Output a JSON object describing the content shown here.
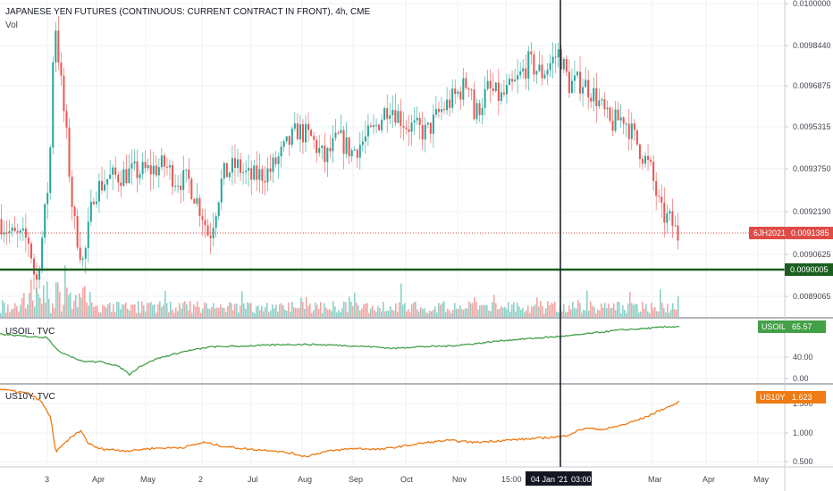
{
  "colors": {
    "candle_up": "#26a69a",
    "candle_down": "#ef5350",
    "vol_up": "#8fd0c8",
    "vol_down": "#f2a7a5",
    "usoil": "#43a047",
    "us10y": "#ef7b14",
    "current_tag": "#e04b46",
    "support_line": "#1b5e20",
    "crosshair": "#131722",
    "grid": "#eef0f4",
    "pane_sep": "#6b6f7a"
  },
  "main_pane": {
    "title": "JAPANESE YEN FUTURES (CONTINUOUS: CURRENT CONTRACT IN FRONT), 4h, CME",
    "volume_label": "Vol",
    "y_ticks": [
      "0.0100000",
      "0.0098440",
      "0.0096875",
      "0.0095315",
      "0.0093750",
      "0.0092190",
      "0.0090625",
      "0.0089065"
    ],
    "current_symbol": "6JH2021",
    "current_price": "0.0091385",
    "support_price": "0.0090005"
  },
  "usoil_pane": {
    "title": "USOIL, TVC",
    "symbol": "USOIL",
    "value": "65.57",
    "y_ticks": [
      "40.00",
      "0.00"
    ]
  },
  "us10y_pane": {
    "title": "US10Y, TVC",
    "symbol": "US10Y",
    "value": "1.623",
    "y_ticks": [
      "1.500",
      "1.000",
      "0.500"
    ]
  },
  "x_axis": {
    "labels": [
      "3",
      "Apr",
      "May",
      "2",
      "Jul",
      "Aug",
      "Sep",
      "Oct",
      "Nov",
      "15:00",
      "Mar",
      "Apr",
      "May"
    ],
    "crosshair_label": "04 Jan '21",
    "crosshair_time": "03:00"
  },
  "chart_data": [
    {
      "type": "line",
      "title": "JAPANESE YEN FUTURES (CONTINUOUS: CURRENT CONTRACT IN FRONT), 4h, CME",
      "series": [
        {
          "name": "6JH2021",
          "points": [
            [
              0.0,
              0.0092
            ],
            [
              0.02,
              0.00914
            ],
            [
              0.045,
              0.00912
            ],
            [
              0.055,
              0.00895
            ],
            [
              0.065,
              0.00915
            ],
            [
              0.075,
              0.00938
            ],
            [
              0.082,
              0.00997
            ],
            [
              0.09,
              0.00975
            ],
            [
              0.1,
              0.0095
            ],
            [
              0.11,
              0.0092
            ],
            [
              0.125,
              0.00903
            ],
            [
              0.14,
              0.0093
            ],
            [
              0.16,
              0.00935
            ],
            [
              0.19,
              0.00937
            ],
            [
              0.22,
              0.00938
            ],
            [
              0.245,
              0.0094
            ],
            [
              0.26,
              0.00935
            ],
            [
              0.28,
              0.00934
            ],
            [
              0.3,
              0.00922
            ],
            [
              0.31,
              0.00913
            ],
            [
              0.33,
              0.00936
            ],
            [
              0.35,
              0.0094
            ],
            [
              0.37,
              0.00935
            ],
            [
              0.4,
              0.00938
            ],
            [
              0.44,
              0.00953
            ],
            [
              0.46,
              0.0095
            ],
            [
              0.48,
              0.00942
            ],
            [
              0.5,
              0.0095
            ],
            [
              0.52,
              0.00945
            ],
            [
              0.55,
              0.00952
            ],
            [
              0.575,
              0.00963
            ],
            [
              0.6,
              0.00955
            ],
            [
              0.63,
              0.00952
            ],
            [
              0.65,
              0.0096
            ],
            [
              0.67,
              0.00965
            ],
            [
              0.695,
              0.00972
            ],
            [
              0.7,
              0.00958
            ],
            [
              0.72,
              0.00968
            ],
            [
              0.74,
              0.00965
            ],
            [
              0.76,
              0.0097
            ],
            [
              0.78,
              0.00978
            ],
            [
              0.8,
              0.00974
            ],
            [
              0.825,
              0.00982
            ],
            [
              0.84,
              0.0097
            ],
            [
              0.86,
              0.00971
            ],
            [
              0.88,
              0.00965
            ],
            [
              0.9,
              0.00955
            ],
            [
              0.92,
              0.00958
            ],
            [
              0.94,
              0.00948
            ],
            [
              0.96,
              0.00938
            ],
            [
              0.975,
              0.00922
            ],
            [
              0.99,
              0.00919
            ],
            [
              1.0,
              0.0091385
            ]
          ]
        }
      ],
      "ylim": [
        0.00887,
        0.01
      ]
    },
    {
      "type": "line",
      "title": "USOIL, TVC",
      "series": [
        {
          "name": "USOIL",
          "points": [
            [
              0.0,
              56
            ],
            [
              0.04,
              53
            ],
            [
              0.07,
              52
            ],
            [
              0.085,
              35
            ],
            [
              0.1,
              30
            ],
            [
              0.12,
              22
            ],
            [
              0.15,
              21
            ],
            [
              0.17,
              17
            ],
            [
              0.185,
              10
            ],
            [
              0.19,
              5
            ],
            [
              0.205,
              15
            ],
            [
              0.23,
              25
            ],
            [
              0.27,
              34
            ],
            [
              0.31,
              40
            ],
            [
              0.36,
              41
            ],
            [
              0.42,
              43
            ],
            [
              0.46,
              43
            ],
            [
              0.5,
              42
            ],
            [
              0.55,
              40
            ],
            [
              0.58,
              38
            ],
            [
              0.61,
              40
            ],
            [
              0.66,
              41
            ],
            [
              0.7,
              44
            ],
            [
              0.74,
              48
            ],
            [
              0.79,
              51
            ],
            [
              0.84,
              54
            ],
            [
              0.87,
              57
            ],
            [
              0.91,
              61
            ],
            [
              0.95,
              63
            ],
            [
              0.98,
              65
            ],
            [
              1.0,
              65.57
            ]
          ]
        }
      ],
      "ylim": [
        -2,
        72
      ]
    },
    {
      "type": "line",
      "title": "US10Y, TVC",
      "series": [
        {
          "name": "US10Y",
          "points": [
            [
              0.0,
              1.88
            ],
            [
              0.04,
              1.8
            ],
            [
              0.06,
              1.65
            ],
            [
              0.075,
              1.3
            ],
            [
              0.082,
              0.62
            ],
            [
              0.095,
              0.8
            ],
            [
              0.11,
              0.98
            ],
            [
              0.12,
              1.05
            ],
            [
              0.13,
              0.8
            ],
            [
              0.145,
              0.7
            ],
            [
              0.16,
              0.68
            ],
            [
              0.19,
              0.65
            ],
            [
              0.22,
              0.7
            ],
            [
              0.27,
              0.72
            ],
            [
              0.3,
              0.82
            ],
            [
              0.33,
              0.74
            ],
            [
              0.37,
              0.68
            ],
            [
              0.4,
              0.66
            ],
            [
              0.43,
              0.6
            ],
            [
              0.45,
              0.54
            ],
            [
              0.48,
              0.64
            ],
            [
              0.52,
              0.7
            ],
            [
              0.56,
              0.68
            ],
            [
              0.6,
              0.76
            ],
            [
              0.63,
              0.82
            ],
            [
              0.66,
              0.86
            ],
            [
              0.7,
              0.82
            ],
            [
              0.74,
              0.86
            ],
            [
              0.79,
              0.9
            ],
            [
              0.83,
              0.94
            ],
            [
              0.86,
              1.1
            ],
            [
              0.89,
              1.08
            ],
            [
              0.92,
              1.18
            ],
            [
              0.95,
              1.32
            ],
            [
              0.975,
              1.48
            ],
            [
              0.99,
              1.56
            ],
            [
              1.0,
              1.623
            ]
          ]
        }
      ],
      "ylim": [
        0.35,
        1.95
      ]
    }
  ]
}
